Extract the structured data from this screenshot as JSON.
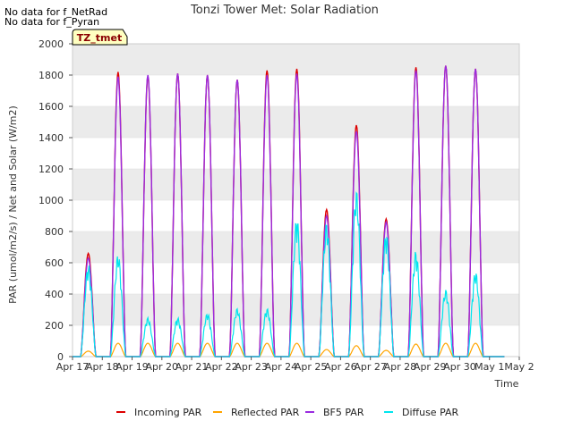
{
  "notices": [
    "No data for f_NetRad",
    "No data for f_Pyran"
  ],
  "colors": {
    "plot_bg_band": "#ebebeb",
    "grid": "#ffffff",
    "incoming": "#dd0000",
    "reflected": "#ffa500",
    "bf5": "#9a2be0",
    "diffuse": "#00e5ee",
    "badge_bg": "#ffffc0",
    "badge_text": "#8b0000"
  },
  "chart_data": {
    "type": "line",
    "title": "Tonzi Tower Met: Solar Radiation",
    "xlabel": "Time",
    "ylabel": "PAR (umol/m2/s) / Net and Solar (W/m2)",
    "badge": "TZ_tmet",
    "ylim": [
      0,
      2000
    ],
    "xlim_days": [
      0,
      15
    ],
    "x_tick_labels": [
      "Apr 17",
      "Apr 18",
      "Apr 19",
      "Apr 20",
      "Apr 21",
      "Apr 22",
      "Apr 23",
      "Apr 24",
      "Apr 25",
      "Apr 26",
      "Apr 27",
      "Apr 28",
      "Apr 29",
      "Apr 30",
      "May 1",
      "May 2"
    ],
    "y_ticks": [
      0,
      200,
      400,
      600,
      800,
      1000,
      1200,
      1400,
      1600,
      1800,
      2000
    ],
    "legend": [
      "Incoming PAR",
      "Reflected PAR",
      "BF5 PAR",
      "Diffuse PAR"
    ],
    "legend_position": "bottom",
    "daily_peaks": {
      "days": [
        1,
        2,
        3,
        4,
        5,
        6,
        7,
        8,
        9,
        10,
        11,
        12,
        13,
        14
      ],
      "incoming_par": [
        660,
        1820,
        1790,
        1810,
        1800,
        1770,
        1830,
        1840,
        940,
        1480,
        880,
        1850,
        1860,
        1840
      ],
      "reflected_par": [
        35,
        85,
        85,
        85,
        85,
        85,
        85,
        85,
        45,
        70,
        40,
        80,
        85,
        85
      ],
      "bf5_par": [
        630,
        1790,
        1800,
        1810,
        1800,
        1770,
        1800,
        1810,
        900,
        1440,
        860,
        1830,
        1860,
        1840
      ],
      "diffuse_par": [
        590,
        660,
        250,
        250,
        280,
        310,
        310,
        900,
        860,
        1070,
        800,
        680,
        430,
        550
      ]
    }
  }
}
